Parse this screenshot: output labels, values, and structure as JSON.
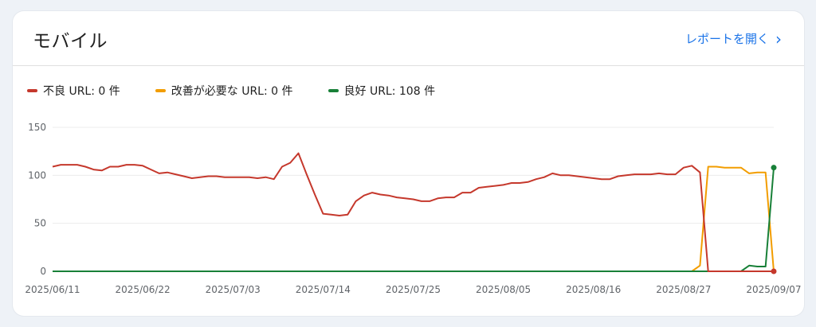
{
  "card": {
    "title": "モバイル",
    "open_report_label": "レポートを開く",
    "open_report_chevron": "›"
  },
  "legend": [
    {
      "label": "不良 URL: 0 件",
      "color": "#c5382c"
    },
    {
      "label": "改善が必要な URL: 0 件",
      "color": "#f29d00"
    },
    {
      "label": "良好 URL: 108 件",
      "color": "#188038"
    }
  ],
  "chart_data": {
    "type": "line",
    "title": "",
    "xlabel": "",
    "ylabel": "",
    "ylim": [
      0,
      150
    ],
    "yticks": [
      "0",
      "50",
      "100",
      "150"
    ],
    "xticks": [
      "2025/06/11",
      "2025/06/22",
      "2025/07/03",
      "2025/07/14",
      "2025/07/25",
      "2025/08/05",
      "2025/08/16",
      "2025/08/27",
      "2025/09/07"
    ],
    "x": [
      "2025/06/11",
      "2025/06/12",
      "2025/06/13",
      "2025/06/14",
      "2025/06/15",
      "2025/06/16",
      "2025/06/17",
      "2025/06/18",
      "2025/06/19",
      "2025/06/20",
      "2025/06/21",
      "2025/06/22",
      "2025/06/23",
      "2025/06/24",
      "2025/06/25",
      "2025/06/26",
      "2025/06/27",
      "2025/06/28",
      "2025/06/29",
      "2025/06/30",
      "2025/07/01",
      "2025/07/02",
      "2025/07/03",
      "2025/07/04",
      "2025/07/05",
      "2025/07/06",
      "2025/07/07",
      "2025/07/08",
      "2025/07/09",
      "2025/07/10",
      "2025/07/11",
      "2025/07/12",
      "2025/07/13",
      "2025/07/14",
      "2025/07/15",
      "2025/07/16",
      "2025/07/17",
      "2025/07/18",
      "2025/07/19",
      "2025/07/20",
      "2025/07/21",
      "2025/07/22",
      "2025/07/23",
      "2025/07/24",
      "2025/07/25",
      "2025/07/26",
      "2025/07/27",
      "2025/07/28",
      "2025/07/29",
      "2025/07/30",
      "2025/07/31",
      "2025/08/01",
      "2025/08/02",
      "2025/08/03",
      "2025/08/04",
      "2025/08/05",
      "2025/08/06",
      "2025/08/07",
      "2025/08/08",
      "2025/08/09",
      "2025/08/10",
      "2025/08/11",
      "2025/08/12",
      "2025/08/13",
      "2025/08/14",
      "2025/08/15",
      "2025/08/16",
      "2025/08/17",
      "2025/08/18",
      "2025/08/19",
      "2025/08/20",
      "2025/08/21",
      "2025/08/22",
      "2025/08/23",
      "2025/08/24",
      "2025/08/25",
      "2025/08/26",
      "2025/08/27",
      "2025/08/28",
      "2025/08/29",
      "2025/08/30",
      "2025/08/31",
      "2025/09/01",
      "2025/09/02",
      "2025/09/03",
      "2025/09/04",
      "2025/09/05",
      "2025/09/06",
      "2025/09/07"
    ],
    "series": [
      {
        "name": "不良 URL: 0 件",
        "color": "#c5382c",
        "values": [
          109,
          111,
          111,
          111,
          109,
          106,
          105,
          109,
          109,
          111,
          111,
          110,
          106,
          102,
          103,
          101,
          99,
          97,
          98,
          99,
          99,
          98,
          98,
          98,
          98,
          97,
          98,
          96,
          109,
          113,
          123,
          101,
          80,
          60,
          59,
          58,
          59,
          73,
          79,
          82,
          80,
          79,
          77,
          76,
          75,
          73,
          73,
          76,
          77,
          77,
          82,
          82,
          87,
          88,
          89,
          90,
          92,
          92,
          93,
          96,
          98,
          102,
          100,
          100,
          99,
          98,
          97,
          96,
          96,
          99,
          100,
          101,
          101,
          101,
          102,
          101,
          101,
          108,
          110,
          103,
          0,
          0,
          0,
          0,
          0,
          0,
          0,
          0,
          0
        ]
      },
      {
        "name": "改善が必要な URL: 0 件",
        "color": "#f29d00",
        "values": [
          0,
          0,
          0,
          0,
          0,
          0,
          0,
          0,
          0,
          0,
          0,
          0,
          0,
          0,
          0,
          0,
          0,
          0,
          0,
          0,
          0,
          0,
          0,
          0,
          0,
          0,
          0,
          0,
          0,
          0,
          0,
          0,
          0,
          0,
          0,
          0,
          0,
          0,
          0,
          0,
          0,
          0,
          0,
          0,
          0,
          0,
          0,
          0,
          0,
          0,
          0,
          0,
          0,
          0,
          0,
          0,
          0,
          0,
          0,
          0,
          0,
          0,
          0,
          0,
          0,
          0,
          0,
          0,
          0,
          0,
          0,
          0,
          0,
          0,
          0,
          0,
          0,
          0,
          0,
          6,
          109,
          109,
          108,
          108,
          108,
          102,
          103,
          103,
          0
        ]
      },
      {
        "name": "良好 URL: 108 件",
        "color": "#188038",
        "values": [
          0,
          0,
          0,
          0,
          0,
          0,
          0,
          0,
          0,
          0,
          0,
          0,
          0,
          0,
          0,
          0,
          0,
          0,
          0,
          0,
          0,
          0,
          0,
          0,
          0,
          0,
          0,
          0,
          0,
          0,
          0,
          0,
          0,
          0,
          0,
          0,
          0,
          0,
          0,
          0,
          0,
          0,
          0,
          0,
          0,
          0,
          0,
          0,
          0,
          0,
          0,
          0,
          0,
          0,
          0,
          0,
          0,
          0,
          0,
          0,
          0,
          0,
          0,
          0,
          0,
          0,
          0,
          0,
          0,
          0,
          0,
          0,
          0,
          0,
          0,
          0,
          0,
          0,
          0,
          0,
          0,
          0,
          0,
          0,
          0,
          6,
          5,
          5,
          108
        ]
      }
    ]
  }
}
